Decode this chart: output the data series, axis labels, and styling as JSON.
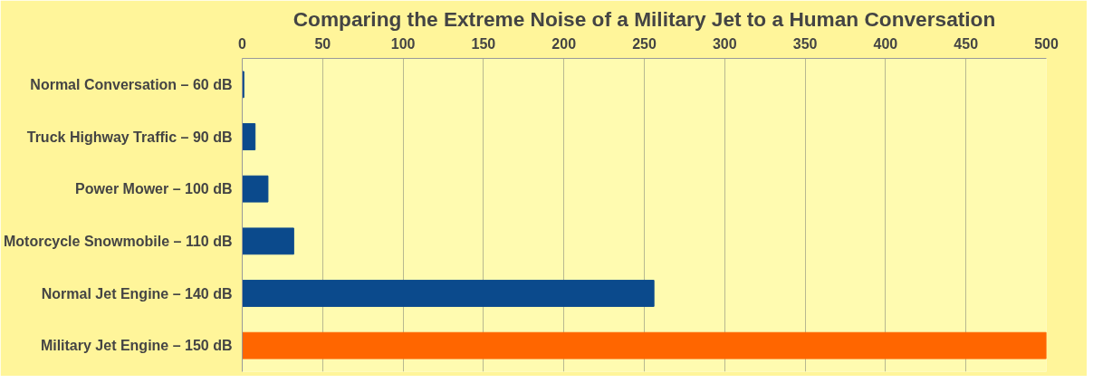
{
  "chart_data": {
    "type": "bar",
    "orientation": "horizontal",
    "title": "Comparing the Extreme Noise of a Military Jet to a Human Conversation",
    "categories": [
      "Normal Conversation – 60 dB",
      "Truck Highway Traffic – 90 dB",
      "Power Mower – 100 dB",
      "Motorcycle Snowmobile – 110 dB",
      "Normal Jet Engine – 140 dB",
      "Military Jet Engine – 150 dB"
    ],
    "values": [
      1,
      8,
      16,
      32,
      256,
      500
    ],
    "colors": [
      "#0b4a8c",
      "#0b4a8c",
      "#0b4a8c",
      "#0b4a8c",
      "#0b4a8c",
      "#ff6600"
    ],
    "xlim": [
      0,
      500
    ],
    "xticks": [
      0,
      50,
      100,
      150,
      200,
      250,
      300,
      350,
      400,
      450,
      500
    ],
    "grid": "x"
  }
}
